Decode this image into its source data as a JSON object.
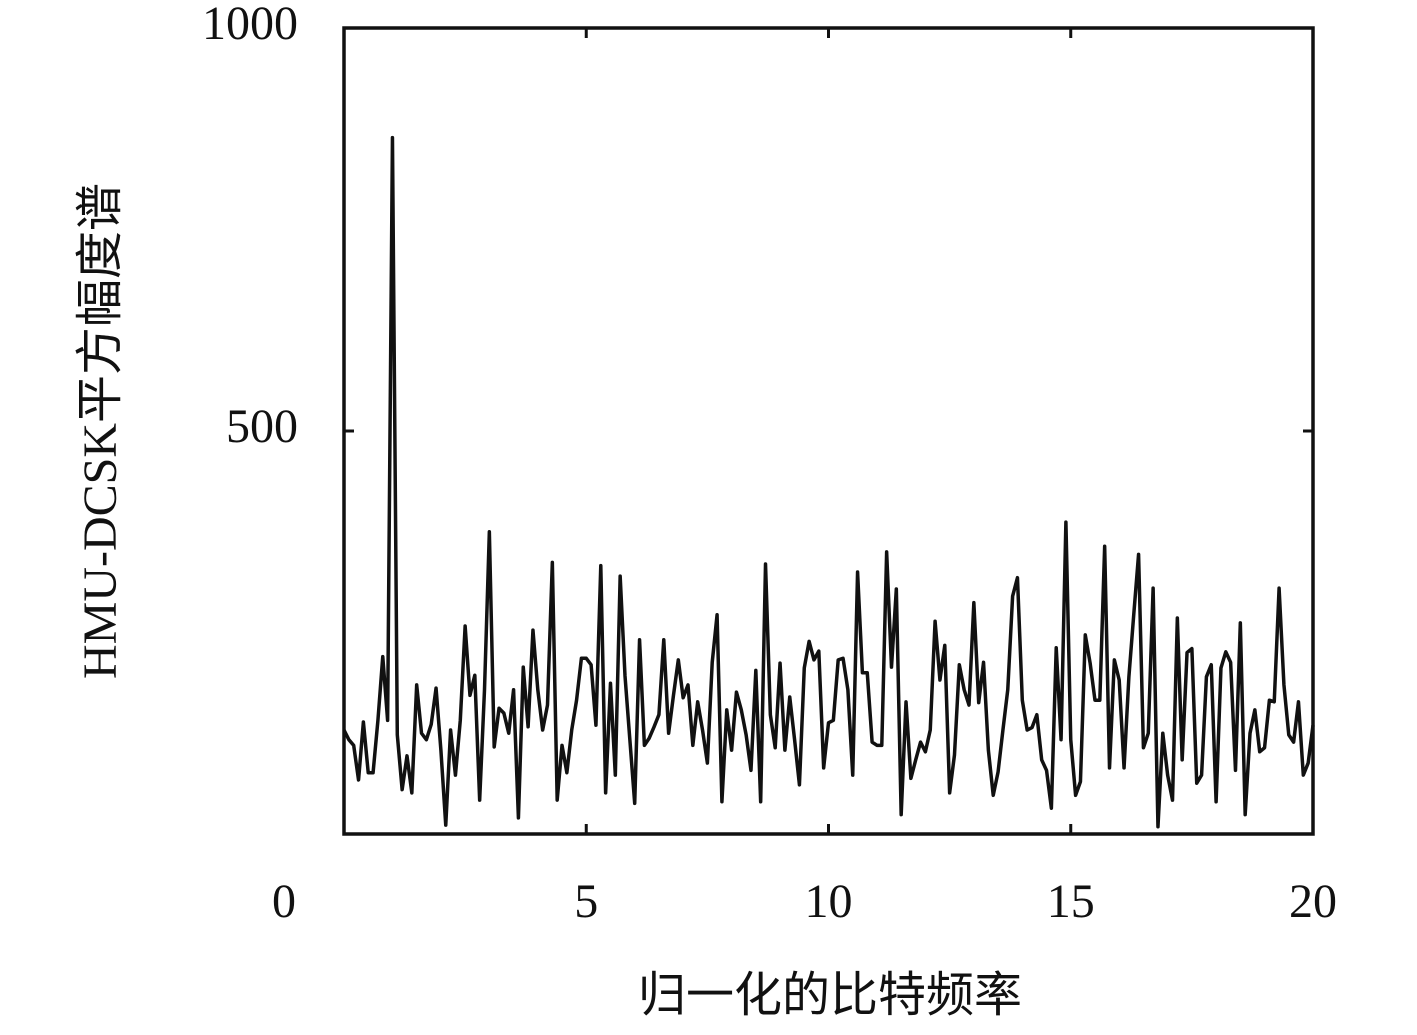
{
  "chart_data": {
    "type": "line",
    "ylabel": "HMU-DCSK平方幅度谱",
    "xlabel": "归一化的比特频率",
    "color": "#111111",
    "xlim": [
      0,
      20
    ],
    "ylim": [
      0,
      1000
    ],
    "xticks": [
      0,
      5,
      10,
      15,
      20
    ],
    "yticks": [
      500,
      1000
    ],
    "x": [
      0,
      0.1,
      0.2,
      0.3,
      0.4,
      0.5,
      0.6,
      0.7,
      0.8,
      0.9,
      1,
      1.1,
      1.2,
      1.3,
      1.4,
      1.5,
      1.6,
      1.7,
      1.8,
      1.9,
      2,
      2.1,
      2.2,
      2.3,
      2.4,
      2.5,
      2.6,
      2.7,
      2.8,
      2.9,
      3,
      3.1,
      3.2,
      3.3,
      3.4,
      3.5,
      3.6,
      3.7,
      3.8,
      3.9,
      4,
      4.1,
      4.2,
      4.3,
      4.4,
      4.5,
      4.6,
      4.7,
      4.8,
      4.9,
      5,
      5.1,
      5.2,
      5.3,
      5.4,
      5.5,
      5.6,
      5.7,
      5.8,
      5.9,
      6,
      6.1,
      6.2,
      6.3,
      6.4,
      6.5,
      6.6,
      6.7,
      6.8,
      6.9,
      7,
      7.1,
      7.2,
      7.3,
      7.4,
      7.5,
      7.6,
      7.7,
      7.8,
      7.9,
      8,
      8.1,
      8.2,
      8.3,
      8.4,
      8.5,
      8.6,
      8.7,
      8.8,
      8.9,
      9,
      9.1,
      9.2,
      9.3,
      9.4,
      9.5,
      9.6,
      9.7,
      9.8,
      9.9,
      10,
      10.1,
      10.2,
      10.3,
      10.4,
      10.5,
      10.6,
      10.7,
      10.8,
      10.9,
      11,
      11.1,
      11.2,
      11.3,
      11.4,
      11.5,
      11.6,
      11.7,
      11.8,
      11.9,
      12,
      12.1,
      12.2,
      12.3,
      12.4,
      12.5,
      12.6,
      12.7,
      12.8,
      12.9,
      13,
      13.1,
      13.2,
      13.3,
      13.4,
      13.5,
      13.6,
      13.7,
      13.8,
      13.9,
      14,
      14.1,
      14.2,
      14.3,
      14.4,
      14.5,
      14.6,
      14.7,
      14.8,
      14.9,
      15,
      15.1,
      15.2,
      15.3,
      15.4,
      15.5,
      15.6,
      15.7,
      15.8,
      15.9,
      16,
      16.1,
      16.2,
      16.3,
      16.4,
      16.5,
      16.6,
      16.7,
      16.8,
      16.9,
      17,
      17.1,
      17.2,
      17.3,
      17.4,
      17.5,
      17.6,
      17.7,
      17.8,
      17.9,
      18,
      18.1,
      18.2,
      18.3,
      18.4,
      18.5,
      18.6,
      18.7,
      18.8,
      18.9,
      19,
      19.1,
      19.2,
      19.3,
      19.4,
      19.5,
      19.6,
      19.7,
      19.8,
      19.9,
      20
    ],
    "values": [
      129,
      117,
      110,
      67,
      139,
      76,
      76,
      141,
      220,
      141,
      864,
      123,
      55,
      97,
      51,
      185,
      125,
      117,
      136,
      181,
      104,
      11,
      129,
      73,
      141,
      258,
      172,
      197,
      42,
      179,
      375,
      108,
      156,
      150,
      125,
      179,
      20,
      207,
      133,
      253,
      179,
      129,
      160,
      337,
      42,
      110,
      76,
      129,
      166,
      218,
      218,
      210,
      135,
      333,
      51,
      187,
      73,
      320,
      196,
      117,
      38,
      241,
      110,
      119,
      133,
      148,
      241,
      125,
      172,
      216,
      169,
      185,
      110,
      164,
      129,
      88,
      213,
      272,
      40,
      154,
      104,
      176,
      154,
      123,
      79,
      203,
      40,
      335,
      148,
      107,
      212,
      104,
      170,
      117,
      61,
      206,
      239,
      216,
      227,
      82,
      138,
      141,
      216,
      218,
      179,
      73,
      325,
      200,
      200,
      114,
      110,
      110,
      350,
      207,
      304,
      24,
      164,
      69,
      92,
      114,
      102,
      129,
      264,
      191,
      234,
      51,
      98,
      210,
      179,
      160,
      287,
      163,
      213,
      104,
      48,
      77,
      129,
      179,
      295,
      318,
      166,
      129,
      132,
      148,
      92,
      79,
      32,
      231,
      117,
      387,
      117,
      48,
      65,
      247,
      212,
      166,
      166,
      357,
      82,
      216,
      191,
      82,
      195,
      272,
      347,
      107,
      125,
      305,
      9,
      125,
      73,
      42,
      268,
      92,
      225,
      230,
      63,
      73,
      195,
      210,
      40,
      206,
      226,
      213,
      79,
      262,
      24,
      125,
      154,
      102,
      107,
      166,
      164,
      305,
      185,
      123,
      114,
      164,
      73,
      88,
      135
    ]
  }
}
